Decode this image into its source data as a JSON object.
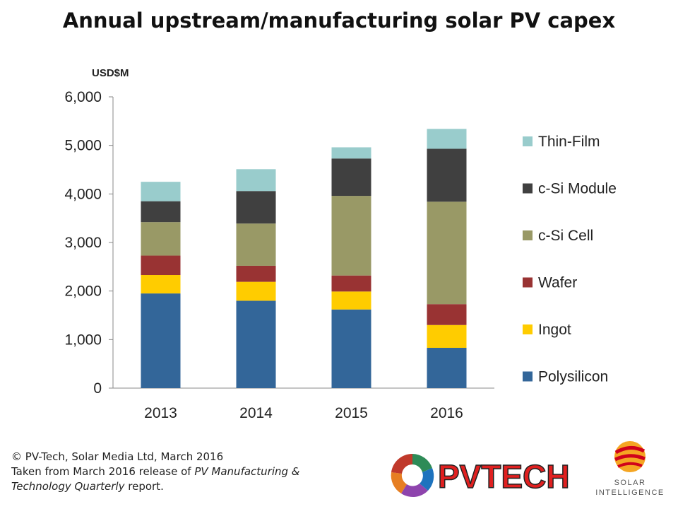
{
  "chart_data": {
    "type": "bar",
    "stacked": true,
    "title": "Annual upstream/manufacturing solar PV capex",
    "ylabel": "USD$M",
    "ylim": [
      0,
      6000
    ],
    "yticks": [
      "0",
      "1,000",
      "2,000",
      "3,000",
      "4,000",
      "5,000",
      "6,000"
    ],
    "ytick_values": [
      0,
      1000,
      2000,
      3000,
      4000,
      5000,
      6000
    ],
    "categories": [
      "2013",
      "2014",
      "2015",
      "2016"
    ],
    "series": [
      {
        "name": "Polysilicon",
        "color": "#336699",
        "values": [
          1950,
          1800,
          1620,
          830
        ]
      },
      {
        "name": "Ingot",
        "color": "#FFCC00",
        "values": [
          380,
          390,
          370,
          470
        ]
      },
      {
        "name": "Wafer",
        "color": "#993333",
        "values": [
          400,
          330,
          330,
          430
        ]
      },
      {
        "name": "c-Si Cell",
        "color": "#999966",
        "values": [
          690,
          870,
          1640,
          2110
        ]
      },
      {
        "name": "c-Si Module",
        "color": "#404040",
        "values": [
          430,
          670,
          770,
          1090
        ]
      },
      {
        "name": "Thin-Film",
        "color": "#99CCCC",
        "values": [
          400,
          450,
          230,
          410
        ]
      }
    ],
    "legend_position": "right",
    "grid": false
  },
  "footer": {
    "line1": "© PV-Tech, Solar Media Ltd, March 2016",
    "line2_prefix": "Taken from March 2016 release of ",
    "line2_italic": "PV Manufacturing &",
    "line3_italic": "Technology Quarterly",
    "line3_suffix": " report."
  },
  "logos": {
    "pvtech": "PVTECH",
    "solar_intelligence_line1": "SOLAR",
    "solar_intelligence_line2": "INTELLIGENCE"
  }
}
